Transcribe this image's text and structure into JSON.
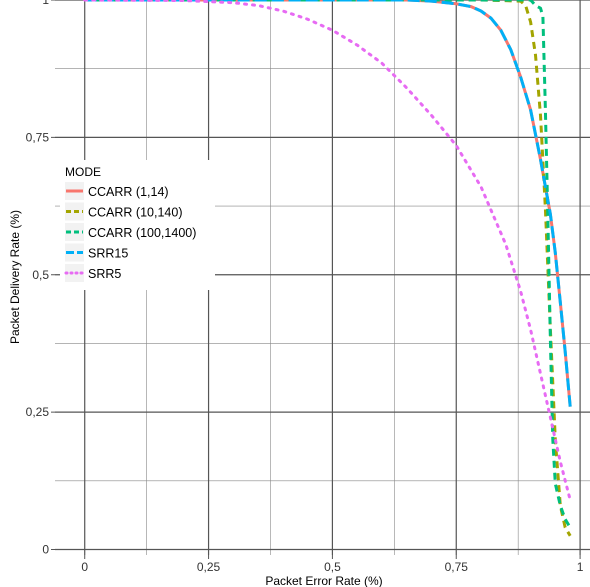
{
  "chart_data": {
    "type": "line",
    "xlabel": "Packet Error Rate (%)",
    "ylabel": "Packet Delivery Rate (%)",
    "xlim": [
      -0.06,
      1.02
    ],
    "ylim": [
      -0.01,
      1.0
    ],
    "x_ticks": [
      0,
      0.25,
      0.5,
      0.75,
      1
    ],
    "x_tick_labels": [
      "0",
      "0,25",
      "0,5",
      "0,75",
      "1"
    ],
    "y_ticks": [
      0,
      0.25,
      0.5,
      0.75,
      1
    ],
    "y_tick_labels": [
      "0",
      "0,25",
      "0,5",
      "0,75",
      "1"
    ],
    "grid": true,
    "legend": {
      "title": "MODE",
      "placement": "left"
    },
    "series": [
      {
        "name": "CCARR (1,14)",
        "color": "#F8766D",
        "dash": "solid",
        "points": [
          [
            0,
            1
          ],
          [
            0.5,
            1
          ],
          [
            0.65,
            1
          ],
          [
            0.7,
            0.998
          ],
          [
            0.75,
            0.993
          ],
          [
            0.78,
            0.988
          ],
          [
            0.8,
            0.98
          ],
          [
            0.82,
            0.967
          ],
          [
            0.84,
            0.945
          ],
          [
            0.86,
            0.91
          ],
          [
            0.88,
            0.86
          ],
          [
            0.9,
            0.8
          ],
          [
            0.92,
            0.71
          ],
          [
            0.93,
            0.66
          ],
          [
            0.94,
            0.61
          ],
          [
            0.95,
            0.54
          ],
          [
            0.96,
            0.45
          ],
          [
            0.97,
            0.36
          ],
          [
            0.98,
            0.26
          ]
        ]
      },
      {
        "name": "CCARR (10,140)",
        "color": "#A3A500",
        "dash": "dashed",
        "points": [
          [
            0,
            1
          ],
          [
            0.5,
            1
          ],
          [
            0.8,
            1
          ],
          [
            0.88,
            0.998
          ],
          [
            0.89,
            0.99
          ],
          [
            0.9,
            0.96
          ],
          [
            0.91,
            0.9
          ],
          [
            0.92,
            0.79
          ],
          [
            0.93,
            0.62
          ],
          [
            0.94,
            0.4
          ],
          [
            0.95,
            0.2
          ],
          [
            0.96,
            0.08
          ],
          [
            0.97,
            0.04
          ],
          [
            0.98,
            0.025
          ]
        ]
      },
      {
        "name": "CCARR (100,1400)",
        "color": "#00BF7D",
        "dash": "dashed",
        "points": [
          [
            0,
            1
          ],
          [
            0.5,
            1
          ],
          [
            0.9,
            1
          ],
          [
            0.91,
            0.99
          ],
          [
            0.92,
            0.985
          ],
          [
            0.925,
            0.97
          ],
          [
            0.93,
            0.8
          ],
          [
            0.935,
            0.6
          ],
          [
            0.94,
            0.38
          ],
          [
            0.945,
            0.2
          ],
          [
            0.95,
            0.12
          ],
          [
            0.96,
            0.08
          ],
          [
            0.97,
            0.055
          ],
          [
            0.98,
            0.04
          ]
        ]
      },
      {
        "name": "SRR15",
        "color": "#00B0F6",
        "dash": "longdash",
        "points": [
          [
            0,
            1
          ],
          [
            0.5,
            1
          ],
          [
            0.65,
            1
          ],
          [
            0.7,
            0.998
          ],
          [
            0.75,
            0.993
          ],
          [
            0.78,
            0.988
          ],
          [
            0.8,
            0.98
          ],
          [
            0.82,
            0.967
          ],
          [
            0.84,
            0.945
          ],
          [
            0.86,
            0.91
          ],
          [
            0.88,
            0.86
          ],
          [
            0.9,
            0.8
          ],
          [
            0.92,
            0.71
          ],
          [
            0.93,
            0.66
          ],
          [
            0.94,
            0.61
          ],
          [
            0.95,
            0.54
          ],
          [
            0.96,
            0.45
          ],
          [
            0.97,
            0.36
          ],
          [
            0.98,
            0.26
          ]
        ]
      },
      {
        "name": "SRR5",
        "color": "#E76BF3",
        "dash": "dotted",
        "points": [
          [
            0,
            1
          ],
          [
            0.2,
            0.999
          ],
          [
            0.3,
            0.995
          ],
          [
            0.35,
            0.99
          ],
          [
            0.4,
            0.98
          ],
          [
            0.45,
            0.965
          ],
          [
            0.5,
            0.945
          ],
          [
            0.55,
            0.918
          ],
          [
            0.6,
            0.885
          ],
          [
            0.65,
            0.84
          ],
          [
            0.7,
            0.79
          ],
          [
            0.75,
            0.735
          ],
          [
            0.8,
            0.66
          ],
          [
            0.85,
            0.555
          ],
          [
            0.88,
            0.47
          ],
          [
            0.9,
            0.4
          ],
          [
            0.92,
            0.32
          ],
          [
            0.94,
            0.24
          ],
          [
            0.96,
            0.16
          ],
          [
            0.98,
            0.09
          ]
        ]
      }
    ]
  }
}
